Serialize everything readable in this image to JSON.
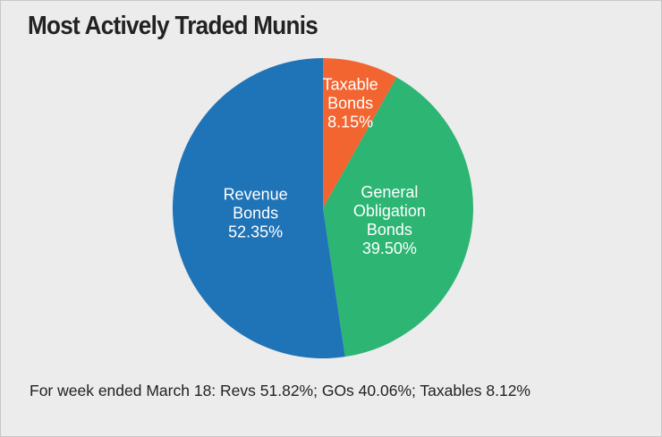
{
  "chart_data": {
    "type": "pie",
    "title": "Most Actively Traded Munis",
    "categories": [
      "Taxable Bonds",
      "General Obligation Bonds",
      "Revenue Bonds"
    ],
    "values": [
      8.15,
      39.5,
      52.35
    ],
    "value_labels": [
      "8.15%",
      "39.50%",
      "52.35%"
    ],
    "colors": [
      "#f26531",
      "#2db573",
      "#1f73b7"
    ],
    "footnote": "For week ended March 18: Revs 51.82%; GOs 40.06%; Taxables 8.12%"
  }
}
